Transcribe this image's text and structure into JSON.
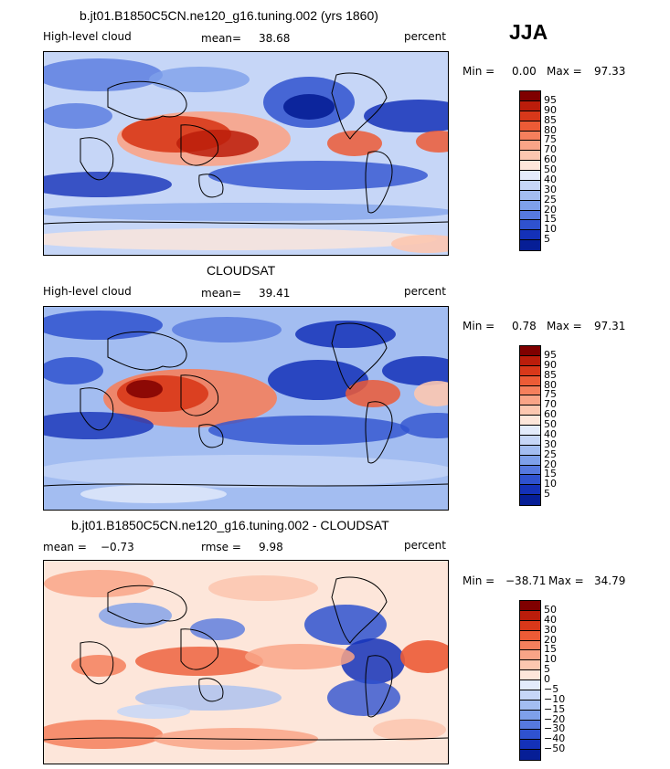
{
  "season": "JJA",
  "units": "percent",
  "panels": [
    {
      "title": "b.jt01.B1850C5CN.ne120_g16.tuning.002 (yrs 1860)",
      "left_label": "High-level cloud",
      "stat_label": "mean=",
      "stat_value": "38.68",
      "units": "percent",
      "min_label": "Min =",
      "min": "0.00",
      "max_label": "Max =",
      "max": "97.33",
      "colorbar_ticks": [
        "95",
        "90",
        "85",
        "80",
        "75",
        "70",
        "60",
        "50",
        "40",
        "30",
        "25",
        "20",
        "15",
        "10",
        "5"
      ]
    },
    {
      "title": "CLOUDSAT",
      "left_label": "High-level cloud",
      "stat_label": "mean=",
      "stat_value": "39.41",
      "units": "percent",
      "min_label": "Min =",
      "min": "0.78",
      "max_label": "Max =",
      "max": "97.31",
      "colorbar_ticks": [
        "95",
        "90",
        "85",
        "80",
        "75",
        "70",
        "60",
        "50",
        "40",
        "30",
        "25",
        "20",
        "15",
        "10",
        "5"
      ]
    },
    {
      "title": "b.jt01.B1850C5CN.ne120_g16.tuning.002 - CLOUDSAT",
      "left_label": "mean =",
      "left_value": "−0.73",
      "stat_label": "rmse =",
      "stat_value": "9.98",
      "units": "percent",
      "min_label": "Min =",
      "min": "−38.71",
      "max_label": "Max =",
      "max": "34.79",
      "colorbar_ticks": [
        "50",
        "40",
        "30",
        "20",
        "15",
        "10",
        "5",
        "0",
        "−5",
        "−10",
        "−15",
        "−20",
        "−30",
        "−40",
        "−50"
      ]
    }
  ],
  "colors": {
    "scale": [
      "#7f0000",
      "#bb1d0b",
      "#d8381a",
      "#ec5b36",
      "#f57f5c",
      "#f9a487",
      "#fcc7b0",
      "#fde6da",
      "#e3ebfb",
      "#c6d6f7",
      "#a3bdf1",
      "#7ea0ea",
      "#5679df",
      "#2f52cf",
      "#1431b8",
      "#061e96"
    ]
  },
  "chart_data": [
    {
      "type": "heatmap",
      "title": "b.jt01.B1850C5CN.ne120_g16.tuning.002 (yrs 1860)",
      "variable": "High-level cloud",
      "units": "percent",
      "mean": 38.68,
      "min": 0.0,
      "max": 97.33,
      "levels": [
        5,
        10,
        15,
        20,
        25,
        30,
        40,
        50,
        60,
        70,
        75,
        80,
        85,
        90,
        95
      ]
    },
    {
      "type": "heatmap",
      "title": "CLOUDSAT",
      "variable": "High-level cloud",
      "units": "percent",
      "mean": 39.41,
      "min": 0.78,
      "max": 97.31,
      "levels": [
        5,
        10,
        15,
        20,
        25,
        30,
        40,
        50,
        60,
        70,
        75,
        80,
        85,
        90,
        95
      ]
    },
    {
      "type": "heatmap",
      "title": "b.jt01.B1850C5CN.ne120_g16.tuning.002 - CLOUDSAT",
      "units": "percent",
      "mean": -0.73,
      "rmse": 9.98,
      "min": -38.71,
      "max": 34.79,
      "levels": [
        -50,
        -40,
        -30,
        -20,
        -15,
        -10,
        -5,
        0,
        5,
        10,
        15,
        20,
        30,
        40,
        50
      ]
    }
  ]
}
